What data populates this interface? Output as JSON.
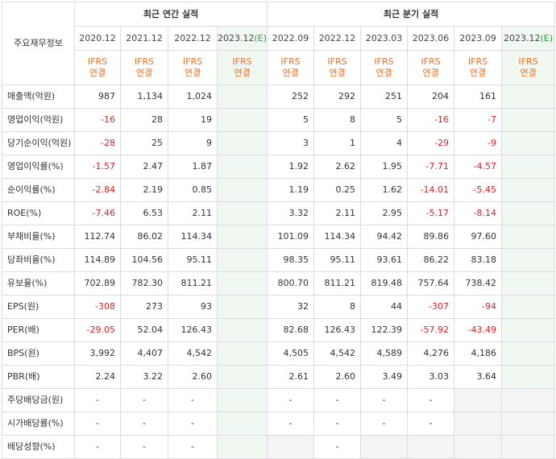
{
  "header": {
    "corner": "주요재무정보",
    "annual_title": "최근 연간 실적",
    "quarterly_title": "최근 분기 실적",
    "periods": [
      "2020.12",
      "2021.12",
      "2022.12",
      "2023.12",
      "2022.09",
      "2022.12",
      "2023.03",
      "2023.06",
      "2023.09",
      "2023.12"
    ],
    "est_marker": "(E)",
    "ifrs_line1": "IFRS",
    "ifrs_line2": "연결"
  },
  "rows": [
    {
      "label": "매출액(억원)",
      "values": [
        "987",
        "1,134",
        "1,024",
        "",
        "252",
        "292",
        "251",
        "204",
        "161",
        ""
      ]
    },
    {
      "label": "영업이익(억원)",
      "values": [
        "-16",
        "28",
        "19",
        "",
        "5",
        "8",
        "5",
        "-16",
        "-7",
        ""
      ]
    },
    {
      "label": "당기순이익(억원)",
      "values": [
        "-28",
        "25",
        "9",
        "",
        "3",
        "1",
        "4",
        "-29",
        "-9",
        ""
      ]
    },
    {
      "label": "영업이익률(%)",
      "values": [
        "-1.57",
        "2.47",
        "1.87",
        "",
        "1.92",
        "2.62",
        "1.95",
        "-7.71",
        "-4.57",
        ""
      ]
    },
    {
      "label": "순이익률(%)",
      "values": [
        "-2.84",
        "2.19",
        "0.85",
        "",
        "1.19",
        "0.25",
        "1.62",
        "-14.01",
        "-5.45",
        ""
      ]
    },
    {
      "label": "ROE(%)",
      "values": [
        "-7.46",
        "6.53",
        "2.11",
        "",
        "3.32",
        "2.11",
        "2.95",
        "-5.17",
        "-8.14",
        ""
      ]
    },
    {
      "label": "부채비율(%)",
      "values": [
        "112.74",
        "86.02",
        "114.34",
        "",
        "101.09",
        "114.34",
        "94.42",
        "89.86",
        "97.60",
        ""
      ]
    },
    {
      "label": "당좌비율(%)",
      "values": [
        "114.89",
        "104.56",
        "95.11",
        "",
        "98.35",
        "95.11",
        "93.61",
        "86.22",
        "83.18",
        ""
      ]
    },
    {
      "label": "유보율(%)",
      "values": [
        "702.89",
        "782.30",
        "811.21",
        "",
        "800.70",
        "811.21",
        "819.48",
        "757.64",
        "738.42",
        ""
      ]
    },
    {
      "label": "EPS(원)",
      "values": [
        "-308",
        "273",
        "93",
        "",
        "32",
        "8",
        "44",
        "-307",
        "-94",
        ""
      ]
    },
    {
      "label": "PER(배)",
      "values": [
        "-29.05",
        "52.04",
        "126.43",
        "",
        "82.68",
        "126.43",
        "122.39",
        "-57.92",
        "-43.49",
        ""
      ]
    },
    {
      "label": "BPS(원)",
      "values": [
        "3,992",
        "4,407",
        "4,542",
        "",
        "4,505",
        "4,542",
        "4,589",
        "4,276",
        "4,186",
        ""
      ]
    },
    {
      "label": "PBR(배)",
      "values": [
        "2.24",
        "3.22",
        "2.60",
        "",
        "2.61",
        "2.60",
        "3.49",
        "3.03",
        "3.64",
        ""
      ]
    },
    {
      "label": "주당배당금(원)",
      "values": [
        "-",
        "-",
        "-",
        "",
        "-",
        "-",
        "-",
        "-",
        "",
        ""
      ]
    },
    {
      "label": "시가배당률(%)",
      "values": [
        "-",
        "-",
        "-",
        "",
        "-",
        "-",
        "-",
        "-",
        "",
        ""
      ]
    },
    {
      "label": "배당성향(%)",
      "values": [
        "-",
        "-",
        "-",
        "",
        "",
        "-",
        "",
        "",
        "",
        ""
      ]
    }
  ],
  "colors": {
    "ifrs": "#f26e21",
    "negative": "#e02020",
    "estimate_bg": "#f1f8f1",
    "estimate_marker": "#2aa23a",
    "empty_bg": "#f4f4f4"
  }
}
